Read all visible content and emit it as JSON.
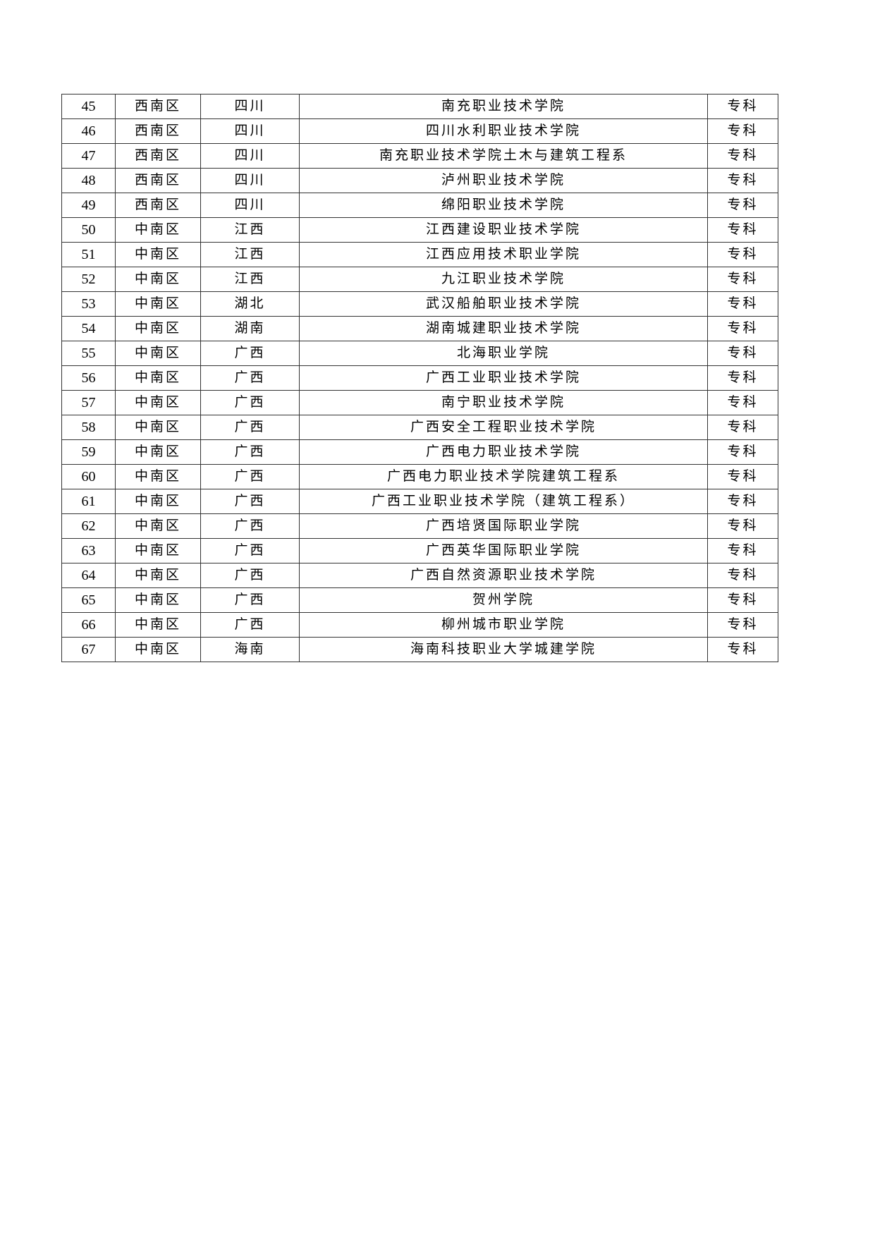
{
  "table": {
    "rows": [
      [
        "45",
        "西南区",
        "四川",
        "南充职业技术学院",
        "专科"
      ],
      [
        "46",
        "西南区",
        "四川",
        "四川水利职业技术学院",
        "专科"
      ],
      [
        "47",
        "西南区",
        "四川",
        "南充职业技术学院土木与建筑工程系",
        "专科"
      ],
      [
        "48",
        "西南区",
        "四川",
        "泸州职业技术学院",
        "专科"
      ],
      [
        "49",
        "西南区",
        "四川",
        "绵阳职业技术学院",
        "专科"
      ],
      [
        "50",
        "中南区",
        "江西",
        "江西建设职业技术学院",
        "专科"
      ],
      [
        "51",
        "中南区",
        "江西",
        "江西应用技术职业学院",
        "专科"
      ],
      [
        "52",
        "中南区",
        "江西",
        "九江职业技术学院",
        "专科"
      ],
      [
        "53",
        "中南区",
        "湖北",
        "武汉船舶职业技术学院",
        "专科"
      ],
      [
        "54",
        "中南区",
        "湖南",
        "湖南城建职业技术学院",
        "专科"
      ],
      [
        "55",
        "中南区",
        "广西",
        "北海职业学院",
        "专科"
      ],
      [
        "56",
        "中南区",
        "广西",
        "广西工业职业技术学院",
        "专科"
      ],
      [
        "57",
        "中南区",
        "广西",
        "南宁职业技术学院",
        "专科"
      ],
      [
        "58",
        "中南区",
        "广西",
        "广西安全工程职业技术学院",
        "专科"
      ],
      [
        "59",
        "中南区",
        "广西",
        "广西电力职业技术学院",
        "专科"
      ],
      [
        "60",
        "中南区",
        "广西",
        "广西电力职业技术学院建筑工程系",
        "专科"
      ],
      [
        "61",
        "中南区",
        "广西",
        "广西工业职业技术学院（建筑工程系）",
        "专科"
      ],
      [
        "62",
        "中南区",
        "广西",
        "广西培贤国际职业学院",
        "专科"
      ],
      [
        "63",
        "中南区",
        "广西",
        "广西英华国际职业学院",
        "专科"
      ],
      [
        "64",
        "中南区",
        "广西",
        "广西自然资源职业技术学院",
        "专科"
      ],
      [
        "65",
        "中南区",
        "广西",
        "贺州学院",
        "专科"
      ],
      [
        "66",
        "中南区",
        "广西",
        "柳州城市职业学院",
        "专科"
      ],
      [
        "67",
        "中南区",
        "海南",
        "海南科技职业大学城建学院",
        "专科"
      ]
    ]
  }
}
